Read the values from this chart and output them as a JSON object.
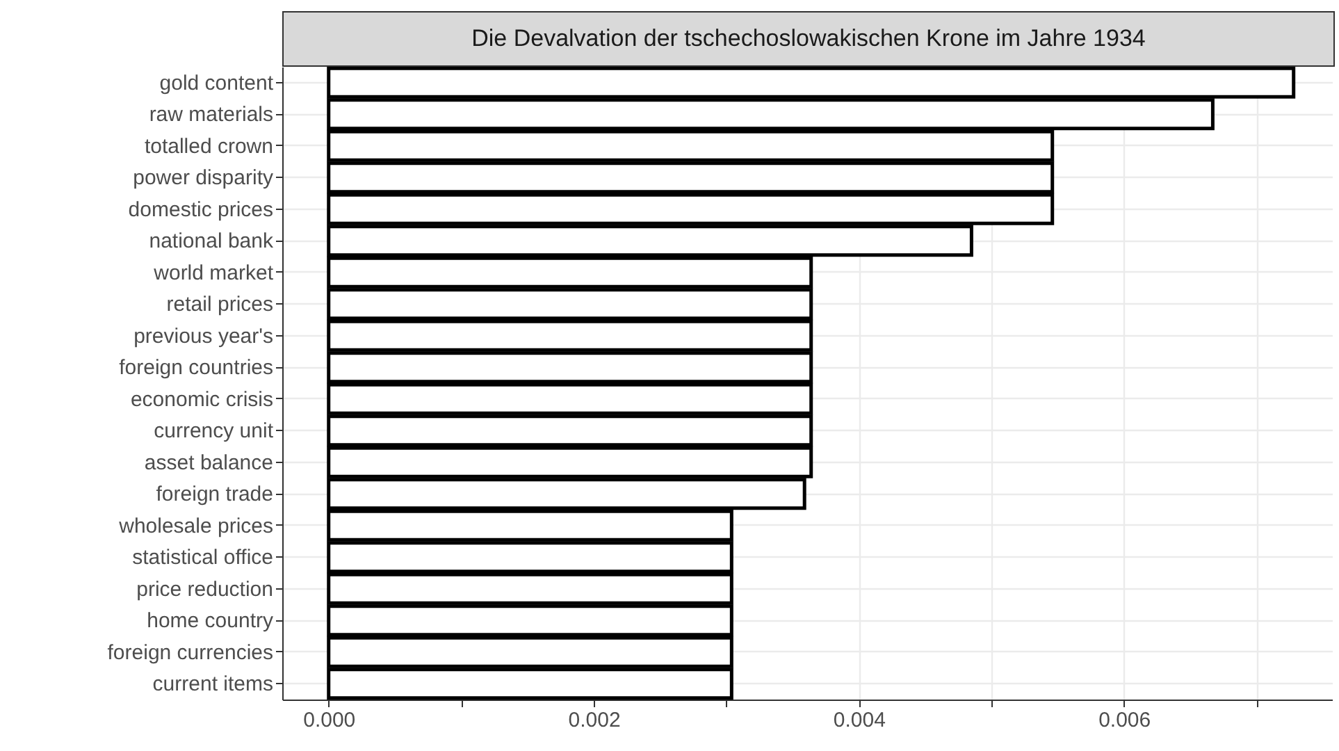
{
  "chart_data": {
    "type": "bar",
    "orientation": "horizontal",
    "title": "Die Devalvation der tschechoslowakischen Krone im Jahre 1934",
    "categories": [
      "gold content",
      "raw materials",
      "totalled crown",
      "power disparity",
      "domestic prices",
      "national bank",
      "world market",
      "retail prices",
      "previous year's",
      "foreign countries",
      "economic crisis",
      "currency unit",
      "asset balance",
      "foreign trade",
      "wholesale prices",
      "statistical office",
      "price reduction",
      "home country",
      "foreign currencies",
      "current items"
    ],
    "values": [
      0.00728,
      0.00667,
      0.00546,
      0.00546,
      0.00546,
      0.00485,
      0.00364,
      0.00364,
      0.00364,
      0.00364,
      0.00364,
      0.00364,
      0.00364,
      0.00359,
      0.00304,
      0.00304,
      0.00304,
      0.00304,
      0.00304,
      0.00304
    ],
    "color": "#ffffff",
    "xlim": [
      -0.00035,
      0.00757
    ],
    "xticks": [
      {
        "value": 0,
        "label": "0.000"
      },
      {
        "value": 0.001,
        "label": null
      },
      {
        "value": 0.002,
        "label": "0.002"
      },
      {
        "value": 0.003,
        "label": null
      },
      {
        "value": 0.004,
        "label": "0.004"
      },
      {
        "value": 0.005,
        "label": null
      },
      {
        "value": 0.006,
        "label": "0.006"
      },
      {
        "value": 0.007,
        "label": null
      }
    ],
    "grid": true
  }
}
